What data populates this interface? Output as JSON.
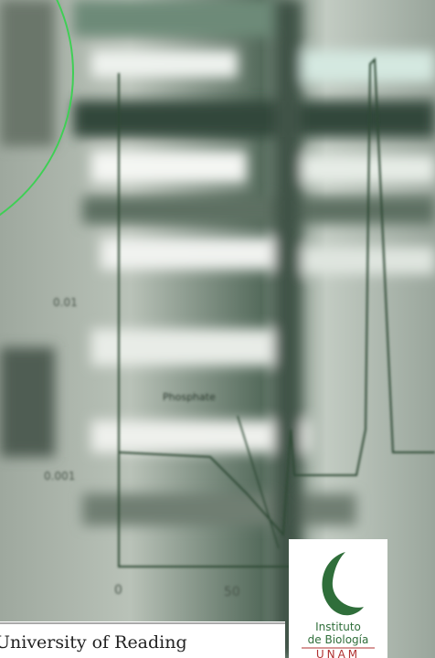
{
  "graph": {
    "annotation": "Phosphate",
    "y_labels": [
      "0.01",
      "0.001"
    ],
    "x_labels": [
      "0",
      "50"
    ]
  },
  "footer": {
    "institution": "University of Reading"
  },
  "logo": {
    "line1": "Instituto",
    "line2": "de Biología",
    "acronym": "UNAM"
  }
}
